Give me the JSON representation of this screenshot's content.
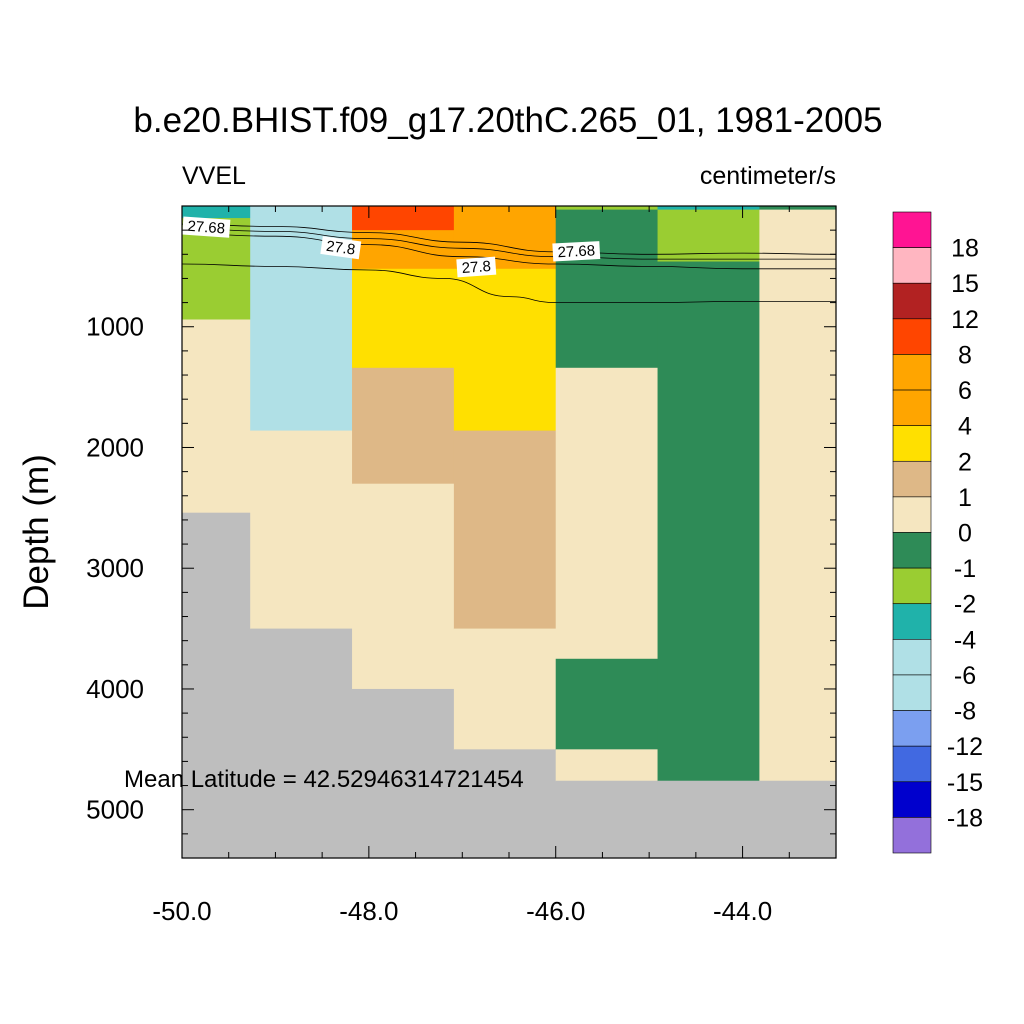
{
  "chart_data": {
    "type": "heatmap",
    "title": "b.e20.BHIST.f09_g17.20thC.265_01, 1981-2005",
    "left_label": "VVEL",
    "right_label": "centimeter/s",
    "ylabel": "Depth (m)",
    "xlabel": "",
    "annotation": "Mean Latitude = 42.52946314721454",
    "xlim": [
      -50.0,
      -43.0
    ],
    "ylim": [
      0,
      5400
    ],
    "y_inverted": true,
    "x_ticks": [
      -50.0,
      -48.0,
      -46.0,
      -44.0
    ],
    "x_tick_labels": [
      "-50.0",
      "-48.0",
      "-46.0",
      "-44.0"
    ],
    "y_ticks": [
      1000,
      2000,
      3000,
      4000,
      5000
    ],
    "y_tick_labels": [
      "1000",
      "2000",
      "3000",
      "4000",
      "5000"
    ],
    "columns": [
      {
        "x0": -50.0,
        "x1": -49.27
      },
      {
        "x0": -49.27,
        "x1": -48.18
      },
      {
        "x0": -48.18,
        "x1": -47.09
      },
      {
        "x0": -47.09,
        "x1": -46.0
      },
      {
        "x0": -46.0,
        "x1": -44.91
      },
      {
        "x0": -44.91,
        "x1": -43.82
      },
      {
        "x0": -43.82,
        "x1": -43.0
      }
    ],
    "missing_color": "#bebebe",
    "colorbar": {
      "labels": [
        "18",
        "15",
        "12",
        "8",
        "6",
        "4",
        "2",
        "1",
        "0",
        "-1",
        "-2",
        "-4",
        "-6",
        "-8",
        "-12",
        "-15",
        "-18"
      ],
      "colors": [
        "#ff1493",
        "#ffb6c1",
        "#b22222",
        "#ff4500",
        "#ffa500",
        "#ffa500",
        "#ffe000",
        "#deb887",
        "#f5e6c0",
        "#2e8b57",
        "#9acd32",
        "#20b2aa",
        "#b0e0e6",
        "#b0e0e6",
        "#7b9ff0",
        "#4169e1",
        "#0000cd",
        "#9370db"
      ]
    },
    "cells": [
      {
        "col": 0,
        "d0": 0,
        "d1": 100,
        "color": "#20b2aa"
      },
      {
        "col": 0,
        "d0": 100,
        "d1": 940,
        "color": "#9acd32"
      },
      {
        "col": 0,
        "d0": 940,
        "d1": 2540,
        "color": "#f5e6c0"
      },
      {
        "col": 0,
        "d0": 2540,
        "d1": 5400,
        "color": "#bebebe"
      },
      {
        "col": 1,
        "d0": 0,
        "d1": 1860,
        "color": "#b0e0e6"
      },
      {
        "col": 1,
        "d0": 1860,
        "d1": 3500,
        "color": "#f5e6c0"
      },
      {
        "col": 1,
        "d0": 3500,
        "d1": 5400,
        "color": "#bebebe"
      },
      {
        "col": 2,
        "d0": 0,
        "d1": 200,
        "color": "#ff4500"
      },
      {
        "col": 2,
        "d0": 200,
        "d1": 520,
        "color": "#ffa500"
      },
      {
        "col": 2,
        "d0": 520,
        "d1": 1340,
        "color": "#ffe000"
      },
      {
        "col": 2,
        "d0": 1340,
        "d1": 2300,
        "color": "#deb887"
      },
      {
        "col": 2,
        "d0": 2300,
        "d1": 4000,
        "color": "#f5e6c0"
      },
      {
        "col": 2,
        "d0": 4000,
        "d1": 5400,
        "color": "#bebebe"
      },
      {
        "col": 3,
        "d0": 0,
        "d1": 520,
        "color": "#ffa500"
      },
      {
        "col": 3,
        "d0": 520,
        "d1": 1860,
        "color": "#ffe000"
      },
      {
        "col": 3,
        "d0": 1860,
        "d1": 3500,
        "color": "#deb887"
      },
      {
        "col": 3,
        "d0": 3500,
        "d1": 4500,
        "color": "#f5e6c0"
      },
      {
        "col": 3,
        "d0": 4500,
        "d1": 5400,
        "color": "#bebebe"
      },
      {
        "col": 4,
        "d0": 0,
        "d1": 30,
        "color": "#9acd32"
      },
      {
        "col": 4,
        "d0": 30,
        "d1": 1340,
        "color": "#2e8b57"
      },
      {
        "col": 4,
        "d0": 1340,
        "d1": 3750,
        "color": "#f5e6c0"
      },
      {
        "col": 4,
        "d0": 3750,
        "d1": 4500,
        "color": "#2e8b57"
      },
      {
        "col": 4,
        "d0": 4500,
        "d1": 4760,
        "color": "#f5e6c0"
      },
      {
        "col": 4,
        "d0": 4760,
        "d1": 5400,
        "color": "#bebebe"
      },
      {
        "col": 5,
        "d0": 0,
        "d1": 30,
        "color": "#20b2aa"
      },
      {
        "col": 5,
        "d0": 30,
        "d1": 460,
        "color": "#9acd32"
      },
      {
        "col": 5,
        "d0": 460,
        "d1": 4760,
        "color": "#2e8b57"
      },
      {
        "col": 5,
        "d0": 4760,
        "d1": 5400,
        "color": "#bebebe"
      },
      {
        "col": 6,
        "d0": 0,
        "d1": 30,
        "color": "#2e8b57"
      },
      {
        "col": 6,
        "d0": 30,
        "d1": 4760,
        "color": "#f5e6c0"
      },
      {
        "col": 6,
        "d0": 4760,
        "d1": 5400,
        "color": "#bebebe"
      }
    ],
    "contours": [
      {
        "level": "27.68",
        "points": [
          [
            -50.0,
            150
          ],
          [
            -49.0,
            170
          ],
          [
            -48.0,
            220
          ],
          [
            -47.0,
            300
          ],
          [
            -46.0,
            380
          ],
          [
            -45.0,
            400
          ],
          [
            -44.0,
            390
          ],
          [
            -43.0,
            400
          ]
        ]
      },
      {
        "level": "27.68",
        "points": [
          [
            -50.0,
            190
          ],
          [
            -49.0,
            210
          ],
          [
            -48.0,
            270
          ],
          [
            -47.0,
            350
          ],
          [
            -46.0,
            420
          ],
          [
            -45.0,
            440
          ],
          [
            -44.0,
            440
          ],
          [
            -43.0,
            440
          ]
        ]
      },
      {
        "level": "27.8",
        "points": [
          [
            -50.0,
            230
          ],
          [
            -49.0,
            250
          ],
          [
            -48.0,
            320
          ],
          [
            -47.0,
            420
          ],
          [
            -46.0,
            480
          ],
          [
            -45.0,
            500
          ],
          [
            -44.0,
            520
          ],
          [
            -43.0,
            520
          ]
        ]
      },
      {
        "level": "27.8",
        "points": [
          [
            -50.0,
            480
          ],
          [
            -49.0,
            500
          ],
          [
            -48.0,
            530
          ],
          [
            -47.2,
            600
          ],
          [
            -46.5,
            750
          ],
          [
            -46.0,
            800
          ],
          [
            -45.0,
            800
          ],
          [
            -44.0,
            790
          ],
          [
            -43.0,
            790
          ]
        ]
      }
    ],
    "contour_labels": [
      {
        "text": "27.68",
        "x": -49.74,
        "depth": 175,
        "angle": 4
      },
      {
        "text": "27.8",
        "x": -48.3,
        "depth": 345,
        "angle": 8
      },
      {
        "text": "27.68",
        "x": -45.78,
        "depth": 375,
        "angle": -3
      },
      {
        "text": "27.8",
        "x": -46.85,
        "depth": 505,
        "angle": -4
      }
    ]
  }
}
